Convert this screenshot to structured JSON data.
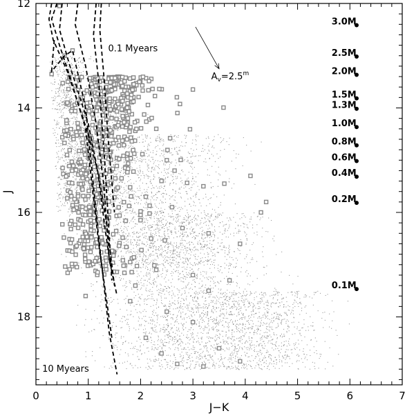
{
  "chart_data": {
    "type": "scatter",
    "title": "",
    "xlabel": "J−K",
    "ylabel": "J",
    "xlim": [
      0,
      7
    ],
    "ylim": [
      19.3,
      12
    ],
    "y_inverted": true,
    "x_ticks": [
      "0",
      "1",
      "2",
      "3",
      "4",
      "5",
      "6",
      "7"
    ],
    "y_ticks": [
      "12",
      "14",
      "16",
      "18"
    ],
    "grid": false,
    "legend": "none",
    "colors": {
      "background_points": "#777777",
      "members": "#888888",
      "isochrones": "#000000"
    },
    "annotations": {
      "isochrone_young": "0.1 Myears",
      "isochrone_old": "10 Myears",
      "reddening_vector": {
        "label": "A",
        "label_sub": "v",
        "label_rest": "=2.5",
        "label_sup": "m",
        "from": [
          3.05,
          12.45
        ],
        "to": [
          3.5,
          13.25
        ]
      }
    },
    "mass_labels": [
      {
        "text": "3.0M",
        "J": 12.35
      },
      {
        "text": "2.5M",
        "J": 12.95
      },
      {
        "text": "2.0M",
        "J": 13.3
      },
      {
        "text": "1.5M",
        "J": 13.75
      },
      {
        "text": "1.3M",
        "J": 13.95
      },
      {
        "text": "1.0M",
        "J": 14.3
      },
      {
        "text": "0.8M",
        "J": 14.65
      },
      {
        "text": "0.6M",
        "J": 14.95
      },
      {
        "text": "0.4M",
        "J": 15.25
      },
      {
        "text": "0.2M",
        "J": 15.75
      },
      {
        "text": "0.1M",
        "J": 17.4
      }
    ],
    "isochrones": [
      {
        "x": [
          0.3,
          0.25,
          0.33,
          0.6,
          1.0,
          1.2,
          1.35,
          1.5
        ],
        "y": [
          12.0,
          12.3,
          12.7,
          13.3,
          14.5,
          15.3,
          16.2,
          17.4
        ]
      },
      {
        "x": [
          0.5,
          0.45,
          0.65,
          1.0,
          1.18,
          1.32,
          1.42
        ],
        "y": [
          12.0,
          12.5,
          13.2,
          14.3,
          15.2,
          16.3,
          17.0
        ]
      },
      {
        "x": [
          0.8,
          0.75,
          0.95,
          1.15,
          1.3,
          1.4,
          1.55
        ],
        "y": [
          12.0,
          12.4,
          13.2,
          14.3,
          15.5,
          16.9,
          17.6
        ]
      },
      {
        "x": [
          1.15,
          1.1,
          1.2,
          1.3,
          1.38,
          1.45
        ],
        "y": [
          12.0,
          12.6,
          13.5,
          14.8,
          16.1,
          17.3
        ]
      },
      {
        "x": [
          1.25,
          1.22,
          1.3,
          1.38,
          1.5
        ],
        "y": [
          12.0,
          12.5,
          13.4,
          14.6,
          16.0
        ]
      },
      {
        "x": [
          0.35,
          0.3,
          0.55,
          0.7,
          0.95,
          1.2,
          1.4,
          1.55
        ],
        "y": [
          12.7,
          13.3,
          13.0,
          12.9,
          14.0,
          16.5,
          18.3,
          19.1
        ]
      },
      {
        "x": [
          0.4,
          0.3,
          0.45,
          0.65,
          0.95,
          1.2,
          1.45
        ],
        "y": [
          12.0,
          12.3,
          12.8,
          13.4,
          14.4,
          16.6,
          18.4
        ]
      }
    ],
    "field_density": [
      {
        "J": [
          13,
          14
        ],
        "x_center": 0.6,
        "x_spread": 0.35,
        "weight": 3
      },
      {
        "J": [
          14,
          16
        ],
        "x_center": 1.0,
        "x_spread": 0.7,
        "weight": 10
      },
      {
        "J": [
          14.5,
          17
        ],
        "x_center": 2.2,
        "x_spread": 1.3,
        "weight": 12
      },
      {
        "J": [
          16,
          19
        ],
        "x_center": 2.8,
        "x_spread": 1.4,
        "weight": 18
      },
      {
        "J": [
          17.5,
          19
        ],
        "x_center": 4.2,
        "x_spread": 1.2,
        "weight": 8
      }
    ],
    "member_stars": {
      "approx_count": 620,
      "core_J_range": [
        13.4,
        17.2
      ],
      "core_JK_center": 1.3
    },
    "members_outliers": [
      [
        0.3,
        13.35
      ],
      [
        0.55,
        13.0
      ],
      [
        0.7,
        12.9
      ],
      [
        0.45,
        12.05
      ],
      [
        0.85,
        13.8
      ],
      [
        0.6,
        13.9
      ],
      [
        2.3,
        14.4
      ],
      [
        2.5,
        15.0
      ],
      [
        2.65,
        15.2
      ],
      [
        2.1,
        15.7
      ],
      [
        2.6,
        15.9
      ],
      [
        3.2,
        15.5
      ],
      [
        3.6,
        15.45
      ],
      [
        2.0,
        16.05
      ],
      [
        2.2,
        16.5
      ],
      [
        2.8,
        16.3
      ],
      [
        3.3,
        16.4
      ],
      [
        3.9,
        16.6
      ],
      [
        2.3,
        17.1
      ],
      [
        1.8,
        17.7
      ],
      [
        3.3,
        17.5
      ],
      [
        2.5,
        17.9
      ],
      [
        3.0,
        18.1
      ],
      [
        4.3,
        16.0
      ],
      [
        4.1,
        15.3
      ],
      [
        3.7,
        17.3
      ],
      [
        2.1,
        18.4
      ],
      [
        3.5,
        18.6
      ],
      [
        2.7,
        18.9
      ],
      [
        3.9,
        18.85
      ],
      [
        3.2,
        18.95
      ],
      [
        2.4,
        18.7
      ],
      [
        0.95,
        17.6
      ],
      [
        4.4,
        15.8
      ],
      [
        3.0,
        17.2
      ],
      [
        1.9,
        17.4
      ]
    ]
  }
}
